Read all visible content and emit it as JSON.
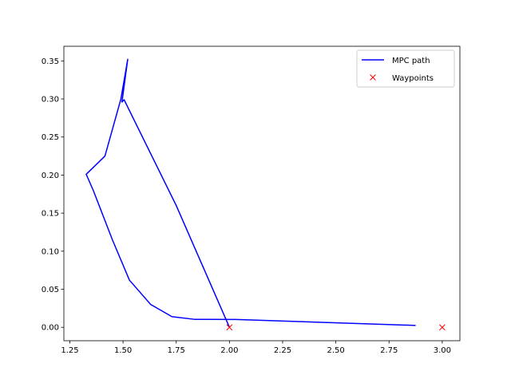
{
  "chart_data": {
    "type": "line",
    "title": "",
    "xlabel": "",
    "ylabel": "",
    "xlim": [
      1.222,
      3.083
    ],
    "ylim": [
      -0.0176,
      0.3692
    ],
    "xticks": [
      1.25,
      1.5,
      1.75,
      2.0,
      2.25,
      2.5,
      2.75,
      3.0
    ],
    "xtick_labels": [
      "1.25",
      "1.50",
      "1.75",
      "2.00",
      "2.25",
      "2.50",
      "2.75",
      "3.00"
    ],
    "yticks": [
      0.0,
      0.05,
      0.1,
      0.15,
      0.2,
      0.25,
      0.3,
      0.35
    ],
    "ytick_labels": [
      "0.00",
      "0.05",
      "0.10",
      "0.15",
      "0.20",
      "0.25",
      "0.30",
      "0.35"
    ],
    "grid": false,
    "legend_position": "top-right",
    "series": [
      {
        "name": "MPC path",
        "kind": "line",
        "color": "#0000ff",
        "x": [
          2.0,
          1.75,
          1.505,
          1.495,
          1.522,
          1.49,
          1.415,
          1.327,
          1.36,
          1.45,
          1.53,
          1.63,
          1.73,
          1.835,
          2.03,
          2.875
        ],
        "y": [
          0.0,
          0.16,
          0.299,
          0.296,
          0.352,
          0.3,
          0.225,
          0.201,
          0.18,
          0.115,
          0.062,
          0.03,
          0.014,
          0.0105,
          0.0103,
          0.0025
        ]
      },
      {
        "name": "Waypoints",
        "kind": "marker",
        "marker": "x",
        "color": "#ff0000",
        "x": [
          2.0,
          3.0
        ],
        "y": [
          0.0,
          0.0
        ]
      }
    ]
  }
}
